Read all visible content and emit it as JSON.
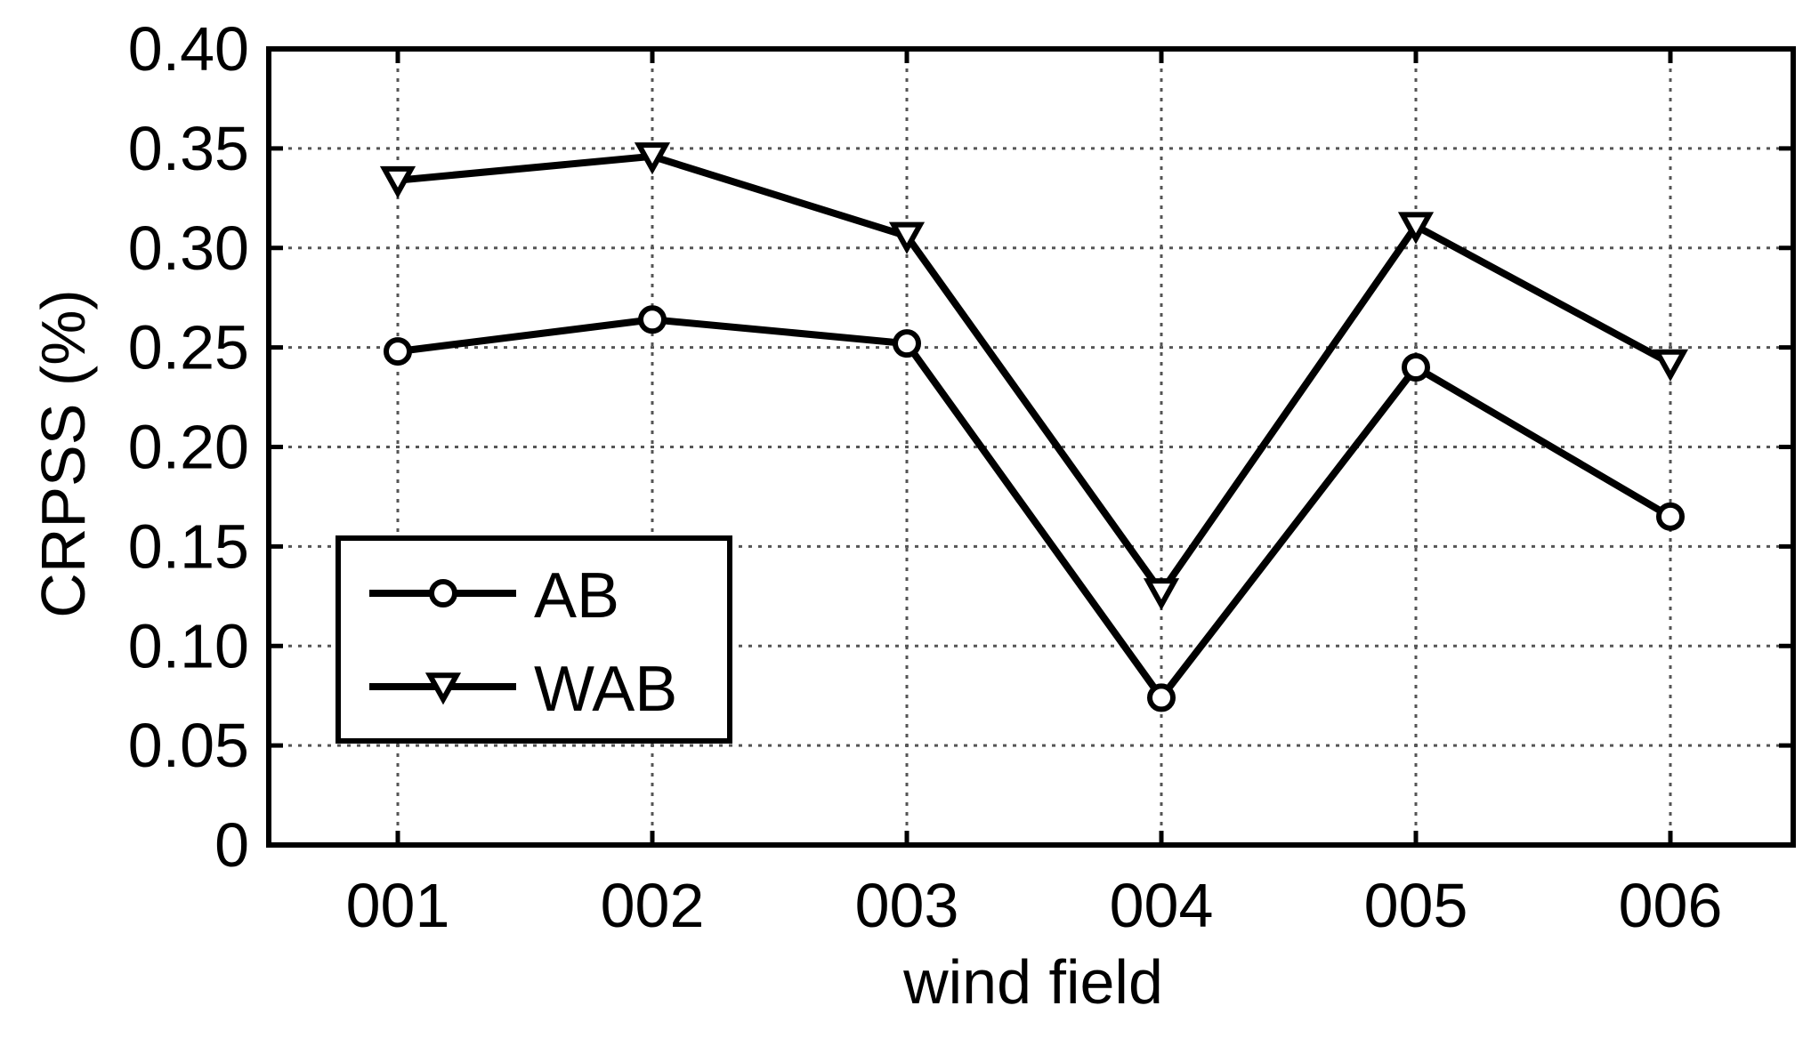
{
  "chart_data": {
    "type": "line",
    "title": "",
    "xlabel": "wind field",
    "ylabel": "CRPSS (%)",
    "categories": [
      "001",
      "002",
      "003",
      "004",
      "005",
      "006"
    ],
    "ylim": [
      0,
      0.4
    ],
    "yticks": [
      0,
      0.05,
      0.1,
      0.15,
      0.2,
      0.25,
      0.3,
      0.35,
      0.4
    ],
    "ytick_labels": [
      "0",
      "0.05",
      "0.10",
      "0.15",
      "0.20",
      "0.25",
      "0.30",
      "0.35",
      "0.40"
    ],
    "grid": true,
    "legend_position": "lower-left",
    "series": [
      {
        "name": "AB",
        "marker": "circle",
        "color": "#000000",
        "values": [
          0.248,
          0.264,
          0.252,
          0.074,
          0.24,
          0.165
        ]
      },
      {
        "name": "WAB",
        "marker": "triangle-down",
        "color": "#000000",
        "values": [
          0.334,
          0.346,
          0.306,
          0.127,
          0.311,
          0.242
        ]
      }
    ]
  }
}
